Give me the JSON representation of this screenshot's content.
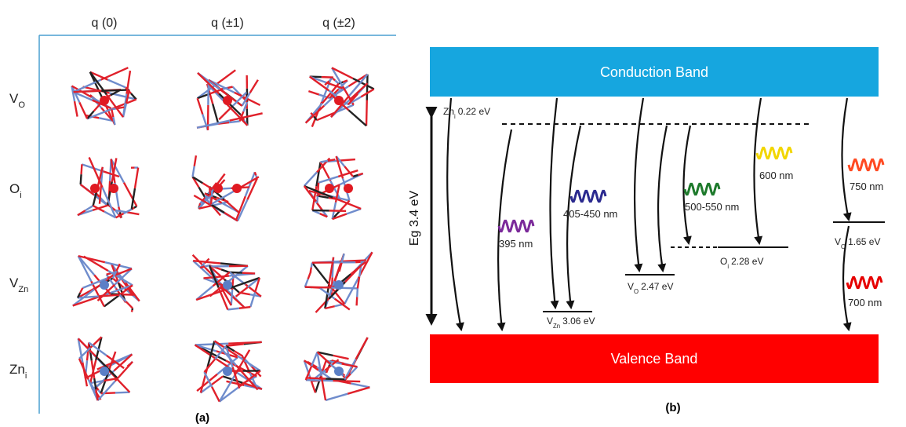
{
  "panel_a": {
    "columns": [
      "q (0)",
      "q (±1)",
      "q (±2)"
    ],
    "rows": [
      {
        "main": "V",
        "sub": "O"
      },
      {
        "main": "O",
        "sub": "i"
      },
      {
        "main": "V",
        "sub": "Zn"
      },
      {
        "main": "Zn",
        "sub": "i"
      }
    ],
    "caption": "(a)"
  },
  "panel_b": {
    "conduction_band": "Conduction Band",
    "valence_band": "Valence Band",
    "band_gap": "Eg 3.4 eV",
    "levels": [
      {
        "main": "Zn",
        "sub": "i",
        "energy": "0.22 eV"
      },
      {
        "main": "V",
        "sub": "Zn",
        "energy": "3.06 eV"
      },
      {
        "main": "V",
        "sub": "O",
        "energy": "2.47 eV"
      },
      {
        "main": "O",
        "sub": "i",
        "energy": "2.28 eV"
      },
      {
        "main": "V",
        "sub": "O",
        "energy": "1.65 eV"
      }
    ],
    "emissions": [
      "395 nm",
      "405-450 nm",
      "500-550 nm",
      "600 nm",
      "750 nm",
      "700 nm"
    ],
    "caption": "(b)"
  }
}
